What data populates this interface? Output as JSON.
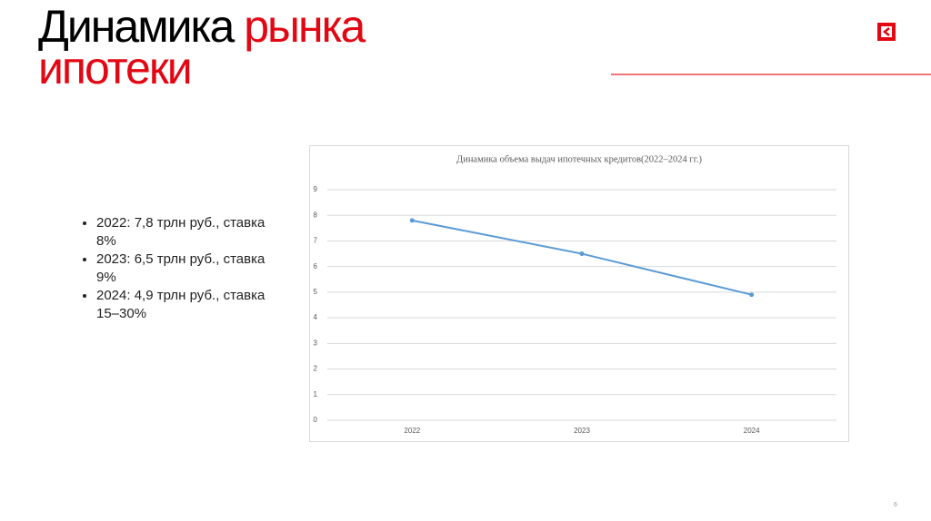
{
  "slide": {
    "title_black": "Динамика",
    "title_red": "рынка",
    "title_line2": "ипотеки",
    "bullets": [
      "2022: 7,8 трлн руб., ставка 8%",
      "2023: 6,5 трлн руб., ставка 9%",
      "2024: 4,9 трлн руб., ставка 15–30%"
    ],
    "page_number": "6"
  },
  "chart_data": {
    "type": "line",
    "title": "Динамика объема выдач ипотечных кредитов(2022–2024 гг.)",
    "categories": [
      "2022",
      "2023",
      "2024"
    ],
    "values": [
      7.8,
      6.5,
      4.9
    ],
    "color": "#5b9bd5",
    "ylim": [
      0,
      9
    ],
    "yticks": [
      0,
      1,
      2,
      3,
      4,
      5,
      6,
      7,
      8,
      9
    ],
    "grid": true
  }
}
